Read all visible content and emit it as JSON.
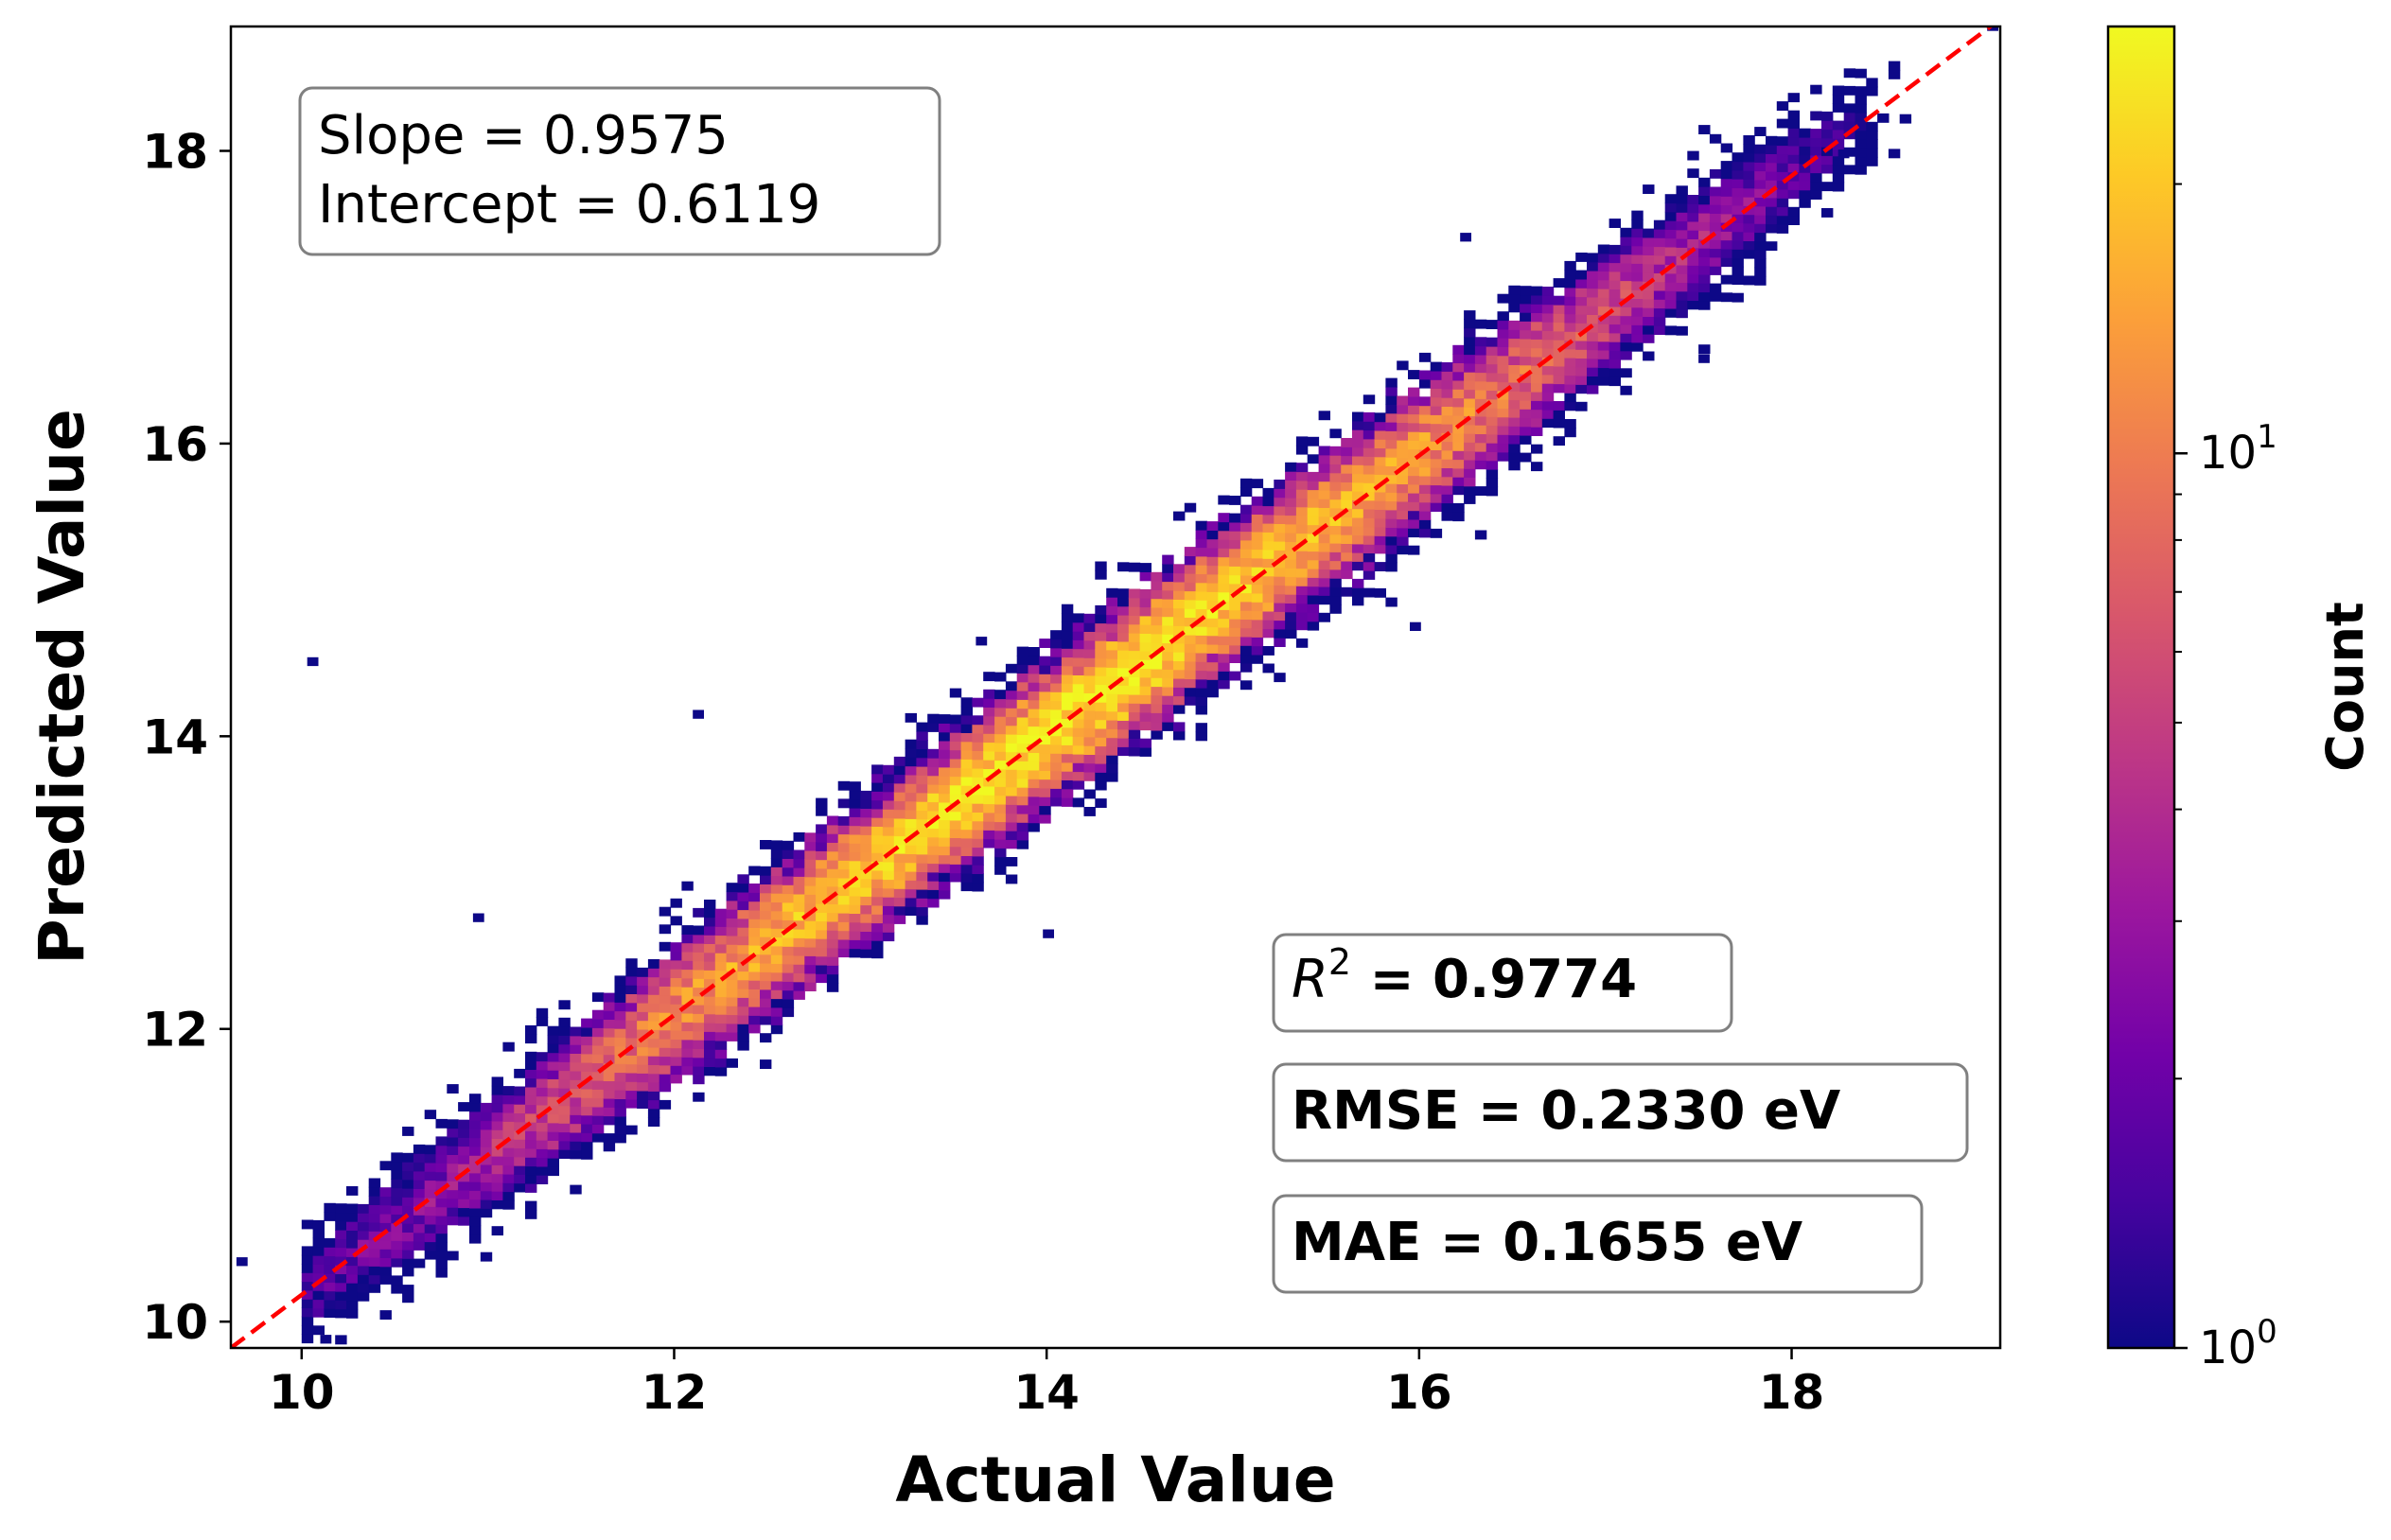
{
  "chart_data": {
    "type": "heatmap",
    "subtype": "2d-histogram",
    "title": "",
    "xlabel": "Actual Value",
    "ylabel": "Predicted Value",
    "xlim": [
      9.62,
      19.12
    ],
    "ylim": [
      9.82,
      18.85
    ],
    "xticks": [
      10,
      12,
      14,
      16,
      18
    ],
    "yticks": [
      10,
      12,
      14,
      16,
      18
    ],
    "x_tick_labels": [
      "10",
      "12",
      "14",
      "16",
      "18"
    ],
    "y_tick_labels": [
      "10",
      "12",
      "14",
      "16",
      "18"
    ],
    "grid": false,
    "colormap": "plasma",
    "colorbar": {
      "label": "Count",
      "scale": "log",
      "range": [
        1,
        30
      ],
      "tick_labels": [
        {
          "value": 1,
          "base": "10",
          "exp": "0"
        },
        {
          "value": 10,
          "base": "10",
          "exp": "1"
        }
      ]
    },
    "density_ridge": {
      "description": "counts concentrated along the fit line; peak count at centre",
      "x": [
        10.2,
        10.8,
        11.4,
        12.0,
        12.6,
        13.2,
        13.8,
        14.4,
        15.0,
        15.6,
        16.2,
        16.8,
        17.4,
        18.0
      ],
      "peak_count": [
        2,
        3,
        6,
        12,
        18,
        22,
        26,
        28,
        22,
        18,
        12,
        7,
        4,
        2
      ]
    },
    "outliers": [
      {
        "x": 10.03,
        "y": 14.48
      },
      {
        "x": 12.1,
        "y": 14.12
      },
      {
        "x": 10.92,
        "y": 12.73
      },
      {
        "x": 13.62,
        "y": 14.62
      },
      {
        "x": 13.98,
        "y": 12.62
      },
      {
        "x": 9.65,
        "y": 10.38
      },
      {
        "x": 10.1,
        "y": 9.85
      },
      {
        "x": 16.22,
        "y": 17.38
      },
      {
        "x": 18.25,
        "y": 17.95
      },
      {
        "x": 19.05,
        "y": 18.82
      },
      {
        "x": 15.95,
        "y": 14.72
      },
      {
        "x": 17.5,
        "y": 16.55
      }
    ],
    "reference_line": {
      "style": "dashed",
      "color": "#ff0000",
      "x": [
        9.62,
        19.12
      ],
      "y": [
        9.82,
        18.9
      ]
    },
    "fit": {
      "slope": 0.9575,
      "intercept": 0.6119
    },
    "annotations": {
      "fit_box": {
        "line1": "Slope = 0.9575",
        "line2": "Intercept = 0.6119"
      },
      "r2_box": {
        "symbol": "R",
        "superscript": "2",
        "value_text": " = 0.9774"
      },
      "rmse_box": {
        "text": "RMSE = 0.2330 eV"
      },
      "mae_box": {
        "text": "MAE = 0.1655 eV"
      }
    }
  },
  "colors": {
    "reference_line": "#ff0000",
    "box_border": "#808080",
    "plasma_stops": [
      "#0d0887",
      "#46039f",
      "#7201a8",
      "#9c179e",
      "#bd3786",
      "#d8576b",
      "#ed7953",
      "#fb9f3a",
      "#fdca26",
      "#f0f921"
    ]
  }
}
